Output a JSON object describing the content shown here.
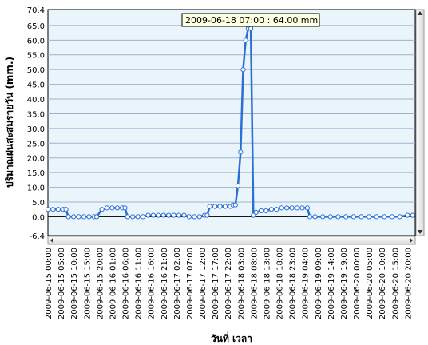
{
  "chart_data": {
    "type": "line",
    "xlabel": "วันที่ เวลา",
    "ylabel": "ปริมาณฝนสะสมรายวัน  (mm.)",
    "ylim": [
      -6.4,
      70.4
    ],
    "yticks": [
      "70.4",
      "65.0",
      "60.0",
      "55.0",
      "50.0",
      "45.0",
      "40.0",
      "35.0",
      "30.0",
      "25.0",
      "20.0",
      "15.0",
      "10.0",
      "5.0",
      "0.0",
      "-6.4"
    ],
    "ytick_values": [
      70.4,
      65,
      60,
      55,
      50,
      45,
      40,
      35,
      30,
      25,
      20,
      15,
      10,
      5,
      0,
      -6.4
    ],
    "xticks": [
      "2009-06-15 00:00",
      "2009-06-15 05:00",
      "2009-06-15 10:00",
      "2009-06-15 15:00",
      "2009-06-15 20:00",
      "2009-06-16 01:00",
      "2009-06-16 06:00",
      "2009-06-16 11:00",
      "2009-06-16 16:00",
      "2009-06-16 21:00",
      "2009-06-17 02:00",
      "2009-06-17 07:00",
      "2009-06-17 12:00",
      "2009-06-17 17:00",
      "2009-06-17 22:00",
      "2009-06-18 03:00",
      "2009-06-18 08:00",
      "2009-06-18 13:00",
      "2009-06-18 18:00",
      "2009-06-18 23:00",
      "2009-06-19 04:00",
      "2009-06-19 09:00",
      "2009-06-19 14:00",
      "2009-06-19 19:00",
      "2009-06-20 00:00",
      "2009-06-20 05:00",
      "2009-06-20 10:00",
      "2009-06-20 15:00",
      "2009-06-20 20:00"
    ],
    "grid": true,
    "annotation": "2009-06-18 07:00 : 64.00 mm.",
    "series_color": "#2b6fd6",
    "series": [
      {
        "x": [
          "2009-06-15 00:00",
          "2009-06-15 02:00",
          "2009-06-15 04:00",
          "2009-06-15 06:00",
          "2009-06-15 07:00",
          "2009-06-15 08:00",
          "2009-06-15 10:00",
          "2009-06-15 12:00",
          "2009-06-15 14:00",
          "2009-06-15 16:00",
          "2009-06-15 18:00",
          "2009-06-15 19:00",
          "2009-06-15 21:00",
          "2009-06-15 23:00",
          "2009-06-16 01:00",
          "2009-06-16 03:00",
          "2009-06-16 05:00",
          "2009-06-16 06:00",
          "2009-06-16 07:00",
          "2009-06-16 09:00",
          "2009-06-16 11:00",
          "2009-06-16 13:00",
          "2009-06-16 15:00",
          "2009-06-16 17:00",
          "2009-06-16 19:00",
          "2009-06-16 21:00",
          "2009-06-16 23:00",
          "2009-06-17 01:00",
          "2009-06-17 03:00",
          "2009-06-17 05:00",
          "2009-06-17 07:00",
          "2009-06-17 09:00",
          "2009-06-17 11:00",
          "2009-06-17 13:00",
          "2009-06-17 14:00",
          "2009-06-17 15:00",
          "2009-06-17 17:00",
          "2009-06-17 19:00",
          "2009-06-17 21:00",
          "2009-06-17 23:00",
          "2009-06-18 00:00",
          "2009-06-18 01:00",
          "2009-06-18 02:00",
          "2009-06-18 03:00",
          "2009-06-18 04:00",
          "2009-06-18 05:00",
          "2009-06-18 06:00",
          "2009-06-18 07:00",
          "2009-06-18 08:00",
          "2009-06-18 09:00",
          "2009-06-18 11:00",
          "2009-06-18 13:00",
          "2009-06-18 15:00",
          "2009-06-18 17:00",
          "2009-06-18 19:00",
          "2009-06-18 21:00",
          "2009-06-18 23:00",
          "2009-06-19 01:00",
          "2009-06-19 03:00",
          "2009-06-19 05:00",
          "2009-06-19 06:00",
          "2009-06-19 08:00",
          "2009-06-19 11:00",
          "2009-06-19 14:00",
          "2009-06-19 17:00",
          "2009-06-19 20:00",
          "2009-06-19 23:00",
          "2009-06-20 02:00",
          "2009-06-20 05:00",
          "2009-06-20 08:00",
          "2009-06-20 11:00",
          "2009-06-20 14:00",
          "2009-06-20 17:00",
          "2009-06-20 20:00",
          "2009-06-20 22:00"
        ],
        "values": [
          2.5,
          2.5,
          2.5,
          2.5,
          2.5,
          0,
          0,
          0,
          0,
          0,
          0,
          0,
          2.5,
          3.0,
          3.0,
          3.0,
          3.0,
          3.0,
          0,
          0,
          0,
          0,
          0.5,
          0.5,
          0.5,
          0.5,
          0.5,
          0.5,
          0.5,
          0.5,
          0,
          0,
          0,
          0.5,
          0.5,
          3.5,
          3.5,
          3.5,
          3.5,
          3.5,
          4.0,
          4.0,
          10.5,
          22,
          50,
          60,
          64,
          64,
          0.5,
          1.5,
          2.0,
          2.0,
          2.5,
          2.5,
          3.0,
          3.0,
          3.0,
          3.0,
          3.0,
          3.0,
          0,
          0,
          0,
          0,
          0,
          0,
          0,
          0,
          0,
          0,
          0,
          0,
          0,
          0.5,
          0.5
        ]
      }
    ]
  }
}
